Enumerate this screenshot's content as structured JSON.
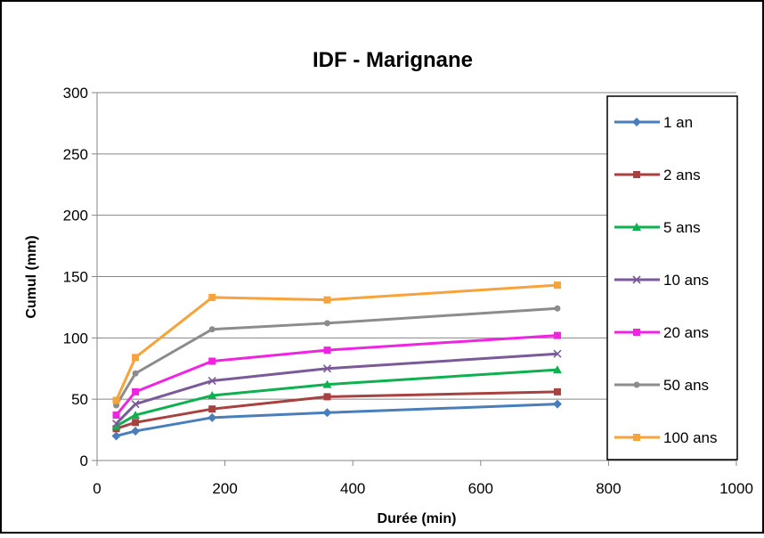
{
  "chart_data": {
    "type": "line",
    "title": "IDF - Marignane",
    "xlabel": "Durée (min)",
    "ylabel": "Cumul (mm)",
    "xlim": [
      0,
      1000
    ],
    "ylim": [
      0,
      300
    ],
    "xticks": [
      0,
      200,
      400,
      600,
      800,
      1000
    ],
    "yticks": [
      0,
      50,
      100,
      150,
      200,
      250,
      300
    ],
    "grid": "horizontal",
    "legend_position": "right",
    "x": [
      30,
      60,
      180,
      360,
      720
    ],
    "series": [
      {
        "name": "1 an",
        "color": "#4a7ebb",
        "marker": "diamond",
        "values": [
          20,
          24,
          35,
          39,
          46
        ]
      },
      {
        "name": "2 ans",
        "color": "#a84240",
        "marker": "square",
        "values": [
          26,
          31,
          42,
          52,
          56
        ]
      },
      {
        "name": "5 ans",
        "color": "#0fb050",
        "marker": "triangle",
        "values": [
          28,
          37,
          53,
          62,
          74
        ]
      },
      {
        "name": "10 ans",
        "color": "#7a5a99",
        "marker": "x",
        "values": [
          30,
          46,
          65,
          75,
          87
        ]
      },
      {
        "name": "20 ans",
        "color": "#f024e0",
        "marker": "square",
        "values": [
          37,
          56,
          81,
          90,
          102
        ]
      },
      {
        "name": "50 ans",
        "color": "#8c8c8c",
        "marker": "circle",
        "values": [
          45,
          71,
          107,
          112,
          124
        ]
      },
      {
        "name": "100 ans",
        "color": "#f7a33a",
        "marker": "square",
        "values": [
          49,
          84,
          133,
          131,
          143
        ]
      }
    ]
  }
}
